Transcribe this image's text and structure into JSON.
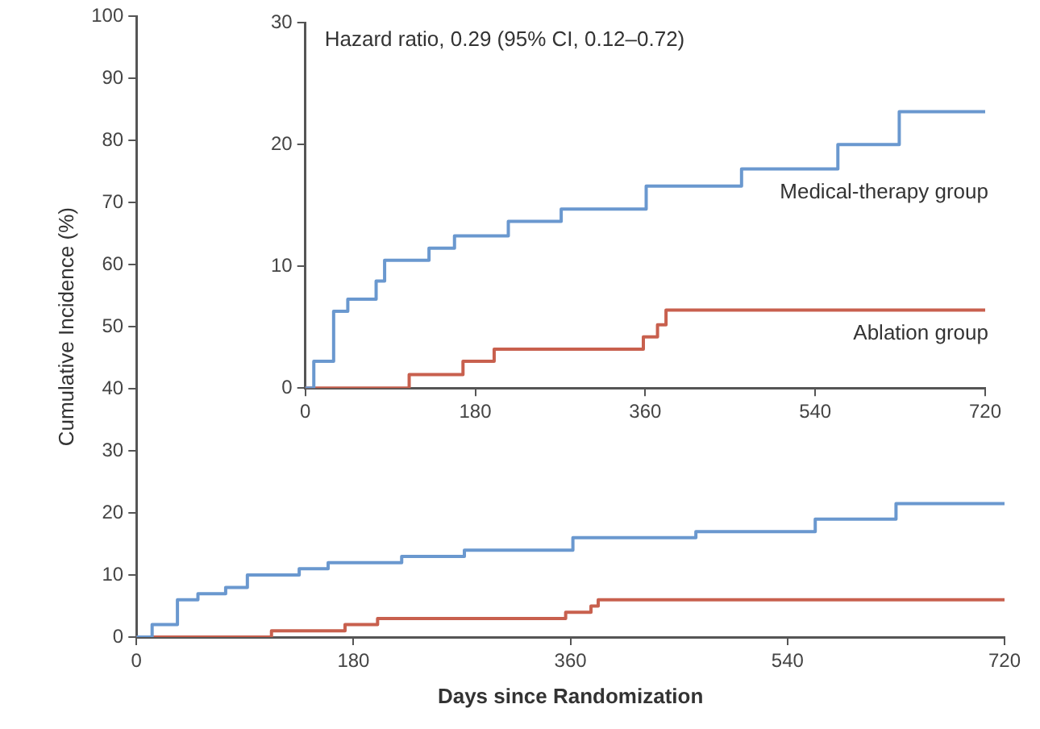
{
  "chart_data": [
    {
      "type": "step",
      "xlabel": "Days since Randomization",
      "ylabel": "Cumulative Incidence (%)",
      "xlim": [
        0,
        720
      ],
      "xticks": [
        0,
        180,
        360,
        540,
        720
      ],
      "ylim": [
        0,
        100
      ],
      "yticks": [
        0,
        10,
        20,
        30,
        40,
        50,
        60,
        70,
        80,
        90,
        100
      ],
      "grid": false,
      "legend": false,
      "marker": "none",
      "series": [
        {
          "color": "#6a98cf",
          "x": [
            0,
            13,
            34,
            51,
            74,
            92,
            135,
            159,
            220,
            272,
            362,
            464,
            563,
            630,
            720
          ],
          "values": [
            0,
            2,
            6,
            7,
            8,
            10,
            11,
            12,
            13,
            14,
            16,
            17,
            19,
            21.5,
            21.5
          ]
        },
        {
          "color": "#c8604e",
          "x": [
            0,
            112,
            173,
            200,
            356,
            377,
            383,
            720
          ],
          "values": [
            0,
            1,
            2,
            3,
            4,
            5,
            6,
            6
          ]
        }
      ]
    },
    {
      "type": "step",
      "annotations": [
        "Hazard ratio, 0.29 (95% CI, 0.12–0.72)"
      ],
      "xlim": [
        0,
        720
      ],
      "xticks": [
        0,
        180,
        360,
        540,
        720
      ],
      "ylim": [
        0,
        30
      ],
      "yticks": [
        0,
        10,
        20,
        30
      ],
      "grid": false,
      "legend": false,
      "marker": "none",
      "series": [
        {
          "name": "Medical-therapy group",
          "color": "#6a98cf",
          "x": [
            0,
            9,
            30,
            45,
            75,
            84,
            131,
            158,
            215,
            271,
            361,
            462,
            564,
            629,
            720
          ],
          "values": [
            0,
            2.2,
            6.3,
            7.3,
            8.8,
            10.5,
            11.5,
            12.5,
            13.7,
            14.7,
            16.6,
            18,
            20,
            22.7,
            22.7
          ]
        },
        {
          "name": "Ablation group",
          "color": "#c8604e",
          "x": [
            0,
            110,
            167,
            200,
            358,
            373,
            382,
            720
          ],
          "values": [
            0,
            1.1,
            2.2,
            3.2,
            4.2,
            5.2,
            6.4,
            6.4
          ]
        }
      ]
    }
  ]
}
